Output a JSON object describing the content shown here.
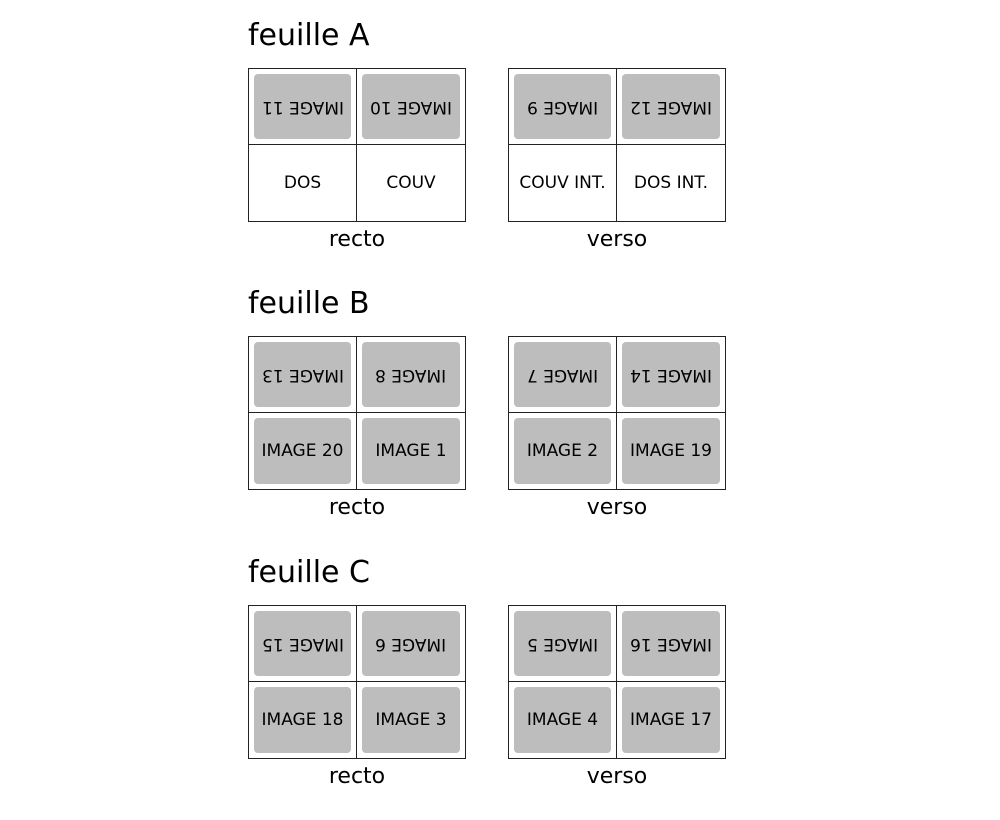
{
  "sheets": [
    {
      "title": "feuille A",
      "recto": {
        "caption": "recto",
        "cells": [
          {
            "label": "IMAGE 11",
            "kind": "image",
            "flipped": true
          },
          {
            "label": "IMAGE 10",
            "kind": "image",
            "flipped": true
          },
          {
            "label": "DOS",
            "kind": "text",
            "flipped": false
          },
          {
            "label": "COUV",
            "kind": "text",
            "flipped": false
          }
        ]
      },
      "verso": {
        "caption": "verso",
        "cells": [
          {
            "label": "IMAGE 9",
            "kind": "image",
            "flipped": true
          },
          {
            "label": "IMAGE 12",
            "kind": "image",
            "flipped": true
          },
          {
            "label": "COUV INT.",
            "kind": "text",
            "flipped": false
          },
          {
            "label": "DOS INT.",
            "kind": "text",
            "flipped": false
          }
        ]
      }
    },
    {
      "title": "feuille B",
      "recto": {
        "caption": "recto",
        "cells": [
          {
            "label": "IMAGE 13",
            "kind": "image",
            "flipped": true
          },
          {
            "label": "IMAGE 8",
            "kind": "image",
            "flipped": true
          },
          {
            "label": "IMAGE 20",
            "kind": "image",
            "flipped": false
          },
          {
            "label": "IMAGE 1",
            "kind": "image",
            "flipped": false
          }
        ]
      },
      "verso": {
        "caption": "verso",
        "cells": [
          {
            "label": "IMAGE 7",
            "kind": "image",
            "flipped": true
          },
          {
            "label": "IMAGE 14",
            "kind": "image",
            "flipped": true
          },
          {
            "label": "IMAGE 2",
            "kind": "image",
            "flipped": false
          },
          {
            "label": "IMAGE 19",
            "kind": "image",
            "flipped": false
          }
        ]
      }
    },
    {
      "title": "feuille C",
      "recto": {
        "caption": "recto",
        "cells": [
          {
            "label": "IMAGE 15",
            "kind": "image",
            "flipped": true
          },
          {
            "label": "IMAGE 6",
            "kind": "image",
            "flipped": true
          },
          {
            "label": "IMAGE 18",
            "kind": "image",
            "flipped": false
          },
          {
            "label": "IMAGE 3",
            "kind": "image",
            "flipped": false
          }
        ]
      },
      "verso": {
        "caption": "verso",
        "cells": [
          {
            "label": "IMAGE 5",
            "kind": "image",
            "flipped": true
          },
          {
            "label": "IMAGE 16",
            "kind": "image",
            "flipped": true
          },
          {
            "label": "IMAGE 4",
            "kind": "image",
            "flipped": false
          },
          {
            "label": "IMAGE 17",
            "kind": "image",
            "flipped": false
          }
        ]
      }
    }
  ],
  "colors": {
    "image_fill": "#bdbdbd",
    "grid_line": "#222222"
  }
}
